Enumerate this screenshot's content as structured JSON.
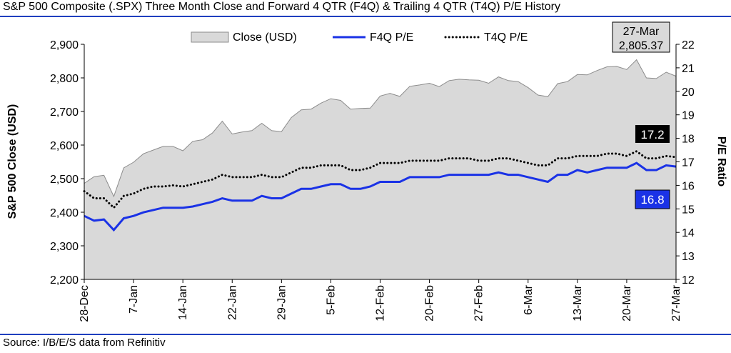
{
  "title": "S&P 500 Composite (.SPX) Three Month Close and Forward 4 QTR (F4Q) & Trailing 4 QTR (T4Q) P/E History",
  "source": "Source: I/B/E/S data from Refinitiv",
  "colors": {
    "area_fill": "#d9d9d9",
    "area_stroke": "#8c8c8c",
    "f4q_line": "#1a32e6",
    "t4q_line": "#000000",
    "rule": "#1f3fbf"
  },
  "chart_data": {
    "type": "line",
    "x_tick_labels": [
      "28-Dec",
      "7-Jan",
      "14-Jan",
      "22-Jan",
      "29-Jan",
      "5-Feb",
      "12-Feb",
      "20-Feb",
      "27-Feb",
      "6-Mar",
      "13-Mar",
      "20-Mar",
      "27-Mar"
    ],
    "y_left": {
      "label": "S&P 500 Close (USD)",
      "range": [
        2200,
        2900
      ],
      "ticks": [
        "2,200",
        "2,300",
        "2,400",
        "2,500",
        "2,600",
        "2,700",
        "2,800",
        "2,900"
      ]
    },
    "y_right": {
      "label": "P/E Ratio",
      "range": [
        12,
        22
      ],
      "ticks": [
        "12",
        "13",
        "14",
        "15",
        "16",
        "17",
        "18",
        "19",
        "20",
        "21",
        "22"
      ]
    },
    "legend": {
      "position": "top",
      "items": [
        "Close (USD)",
        "F4Q P/E",
        "T4Q P/E"
      ]
    },
    "grid": false,
    "series": [
      {
        "name": "Close (USD)",
        "axis": "left",
        "style": "area",
        "values": [
          2486,
          2506,
          2510,
          2447,
          2532,
          2549,
          2574,
          2585,
          2596,
          2596,
          2583,
          2611,
          2616,
          2636,
          2671,
          2633,
          2639,
          2643,
          2665,
          2643,
          2640,
          2682,
          2705,
          2707,
          2725,
          2738,
          2733,
          2707,
          2709,
          2710,
          2746,
          2754,
          2745,
          2775,
          2779,
          2784,
          2774,
          2792,
          2796,
          2794,
          2793,
          2784,
          2803,
          2792,
          2789,
          2771,
          2749,
          2744,
          2783,
          2789,
          2810,
          2809,
          2822,
          2833,
          2834,
          2825,
          2854,
          2800,
          2798,
          2817,
          2805
        ]
      },
      {
        "name": "F4Q P/E",
        "axis": "right",
        "style": "solid",
        "values": [
          14.7,
          14.5,
          14.55,
          14.1,
          14.6,
          14.7,
          14.85,
          14.95,
          15.05,
          15.05,
          15.05,
          15.1,
          15.2,
          15.3,
          15.45,
          15.35,
          15.35,
          15.35,
          15.55,
          15.45,
          15.45,
          15.65,
          15.85,
          15.85,
          15.95,
          16.05,
          16.05,
          15.85,
          15.85,
          15.95,
          16.15,
          16.15,
          16.15,
          16.35,
          16.35,
          16.35,
          16.35,
          16.45,
          16.45,
          16.45,
          16.45,
          16.45,
          16.55,
          16.45,
          16.45,
          16.35,
          16.25,
          16.15,
          16.45,
          16.45,
          16.65,
          16.55,
          16.65,
          16.75,
          16.75,
          16.75,
          16.95,
          16.65,
          16.65,
          16.85,
          16.8
        ]
      },
      {
        "name": "T4Q P/E",
        "axis": "right",
        "style": "dotted",
        "values": [
          15.75,
          15.45,
          15.45,
          15.05,
          15.55,
          15.65,
          15.85,
          15.95,
          15.95,
          16.0,
          15.95,
          16.05,
          16.15,
          16.25,
          16.45,
          16.35,
          16.35,
          16.35,
          16.45,
          16.35,
          16.35,
          16.55,
          16.75,
          16.75,
          16.85,
          16.85,
          16.85,
          16.65,
          16.65,
          16.75,
          16.95,
          16.95,
          16.95,
          17.05,
          17.05,
          17.05,
          17.05,
          17.15,
          17.15,
          17.15,
          17.05,
          17.05,
          17.15,
          17.15,
          17.05,
          16.95,
          16.85,
          16.85,
          17.15,
          17.15,
          17.25,
          17.25,
          17.25,
          17.35,
          17.35,
          17.25,
          17.45,
          17.15,
          17.15,
          17.25,
          17.2
        ]
      }
    ],
    "annotations": [
      {
        "text": "27-Mar",
        "text2": "2,805.37",
        "series": "Close (USD)"
      },
      {
        "text": "17.2",
        "series": "T4Q P/E"
      },
      {
        "text": "16.8",
        "series": "F4Q P/E"
      }
    ]
  }
}
